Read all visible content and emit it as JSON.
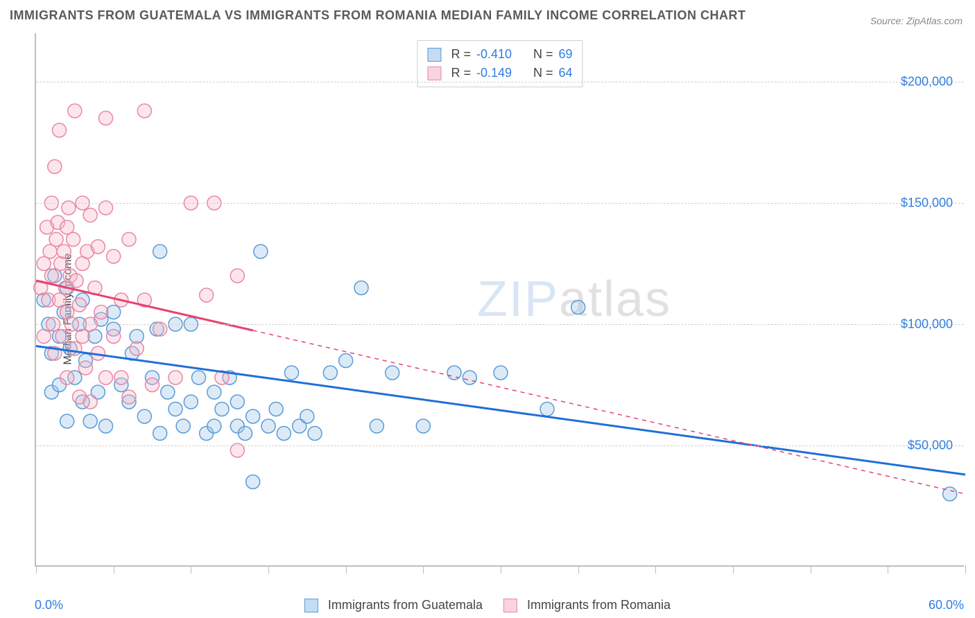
{
  "title": "IMMIGRANTS FROM GUATEMALA VS IMMIGRANTS FROM ROMANIA MEDIAN FAMILY INCOME CORRELATION CHART",
  "source": "Source: ZipAtlas.com",
  "watermark_bold": "ZIP",
  "watermark_thin": "atlas",
  "ylabel": "Median Family Income",
  "chart": {
    "type": "scatter",
    "xlim": [
      0,
      60
    ],
    "ylim": [
      0,
      220000
    ],
    "x_start_label": "0.0%",
    "x_end_label": "60.0%",
    "y_ticks": [
      50000,
      100000,
      150000,
      200000
    ],
    "y_tick_labels": [
      "$50,000",
      "$100,000",
      "$150,000",
      "$200,000"
    ],
    "x_ticks_pct": [
      0,
      5,
      10,
      15,
      20,
      25,
      30,
      35,
      40,
      45,
      50,
      55,
      60
    ],
    "grid_color": "#d0d0d0",
    "axis_color": "#bdbdbd",
    "background_color": "#ffffff",
    "marker_radius": 10,
    "series": [
      {
        "name": "Immigrants from Guatemala",
        "label": "Immigrants from Guatemala",
        "fill_color": "#9cc3ec",
        "stroke_color": "#5b9bd5",
        "line_color": "#1f6fd6",
        "R": "-0.410",
        "N": "69",
        "trend": {
          "x1": 0,
          "y1": 91000,
          "x2": 60,
          "y2": 38000,
          "solid_until_x": 60
        },
        "points": [
          [
            0.5,
            110000
          ],
          [
            0.8,
            100000
          ],
          [
            1,
            88000
          ],
          [
            1,
            72000
          ],
          [
            1.2,
            120000
          ],
          [
            1.5,
            95000
          ],
          [
            1.5,
            75000
          ],
          [
            1.8,
            105000
          ],
          [
            2,
            60000
          ],
          [
            2,
            115000
          ],
          [
            2.2,
            90000
          ],
          [
            2.5,
            78000
          ],
          [
            2.8,
            100000
          ],
          [
            3,
            68000
          ],
          [
            3,
            110000
          ],
          [
            3.2,
            85000
          ],
          [
            3.5,
            60000
          ],
          [
            3.8,
            95000
          ],
          [
            4,
            72000
          ],
          [
            4.2,
            102000
          ],
          [
            4.5,
            58000
          ],
          [
            5,
            98000
          ],
          [
            5,
            105000
          ],
          [
            5.5,
            75000
          ],
          [
            6,
            68000
          ],
          [
            6.2,
            88000
          ],
          [
            6.5,
            95000
          ],
          [
            7,
            62000
          ],
          [
            7.5,
            78000
          ],
          [
            7.8,
            98000
          ],
          [
            8,
            130000
          ],
          [
            8,
            55000
          ],
          [
            8.5,
            72000
          ],
          [
            9,
            100000
          ],
          [
            9,
            65000
          ],
          [
            9.5,
            58000
          ],
          [
            10,
            68000
          ],
          [
            10,
            100000
          ],
          [
            10.5,
            78000
          ],
          [
            11,
            55000
          ],
          [
            11.5,
            72000
          ],
          [
            11.5,
            58000
          ],
          [
            12,
            65000
          ],
          [
            12.5,
            78000
          ],
          [
            13,
            58000
          ],
          [
            13,
            68000
          ],
          [
            13.5,
            55000
          ],
          [
            14,
            62000
          ],
          [
            14,
            35000
          ],
          [
            14.5,
            130000
          ],
          [
            15,
            58000
          ],
          [
            15.5,
            65000
          ],
          [
            16,
            55000
          ],
          [
            16.5,
            80000
          ],
          [
            17,
            58000
          ],
          [
            17.5,
            62000
          ],
          [
            18,
            55000
          ],
          [
            19,
            80000
          ],
          [
            20,
            85000
          ],
          [
            21,
            115000
          ],
          [
            22,
            58000
          ],
          [
            23,
            80000
          ],
          [
            25,
            58000
          ],
          [
            27,
            80000
          ],
          [
            28,
            78000
          ],
          [
            30,
            80000
          ],
          [
            33,
            65000
          ],
          [
            35,
            107000
          ],
          [
            59,
            30000
          ]
        ]
      },
      {
        "name": "Immigrants from Romania",
        "label": "Immigrants from Romania",
        "fill_color": "#f5b8c8",
        "stroke_color": "#e887a3",
        "line_color": "#e8416f",
        "R": "-0.149",
        "N": "64",
        "trend": {
          "x1": 0,
          "y1": 118000,
          "x2": 60,
          "y2": 30000,
          "solid_until_x": 14
        },
        "points": [
          [
            0.3,
            115000
          ],
          [
            0.5,
            125000
          ],
          [
            0.5,
            95000
          ],
          [
            0.7,
            140000
          ],
          [
            0.8,
            110000
          ],
          [
            0.9,
            130000
          ],
          [
            1,
            120000
          ],
          [
            1,
            150000
          ],
          [
            1.1,
            100000
          ],
          [
            1.2,
            165000
          ],
          [
            1.2,
            88000
          ],
          [
            1.3,
            135000
          ],
          [
            1.4,
            142000
          ],
          [
            1.5,
            110000
          ],
          [
            1.5,
            180000
          ],
          [
            1.6,
            125000
          ],
          [
            1.7,
            95000
          ],
          [
            1.8,
            130000
          ],
          [
            1.9,
            115000
          ],
          [
            2,
            140000
          ],
          [
            2,
            105000
          ],
          [
            2,
            78000
          ],
          [
            2.1,
            148000
          ],
          [
            2.2,
            120000
          ],
          [
            2.3,
            100000
          ],
          [
            2.4,
            135000
          ],
          [
            2.5,
            90000
          ],
          [
            2.5,
            188000
          ],
          [
            2.6,
            118000
          ],
          [
            2.8,
            108000
          ],
          [
            2.8,
            70000
          ],
          [
            3,
            125000
          ],
          [
            3,
            95000
          ],
          [
            3,
            150000
          ],
          [
            3.2,
            82000
          ],
          [
            3.3,
            130000
          ],
          [
            3.5,
            145000
          ],
          [
            3.5,
            100000
          ],
          [
            3.5,
            68000
          ],
          [
            3.8,
            115000
          ],
          [
            4,
            88000
          ],
          [
            4,
            132000
          ],
          [
            4.2,
            105000
          ],
          [
            4.5,
            78000
          ],
          [
            4.5,
            185000
          ],
          [
            4.5,
            148000
          ],
          [
            5,
            128000
          ],
          [
            5,
            95000
          ],
          [
            5.5,
            78000
          ],
          [
            5.5,
            110000
          ],
          [
            6,
            70000
          ],
          [
            6,
            135000
          ],
          [
            6.5,
            90000
          ],
          [
            7,
            188000
          ],
          [
            7,
            110000
          ],
          [
            7.5,
            75000
          ],
          [
            8,
            98000
          ],
          [
            9,
            78000
          ],
          [
            10,
            150000
          ],
          [
            11,
            112000
          ],
          [
            11.5,
            150000
          ],
          [
            12,
            78000
          ],
          [
            13,
            120000
          ],
          [
            13,
            48000
          ]
        ]
      }
    ],
    "legend_stats": {
      "r_label": "R =",
      "n_label": "N ="
    }
  }
}
